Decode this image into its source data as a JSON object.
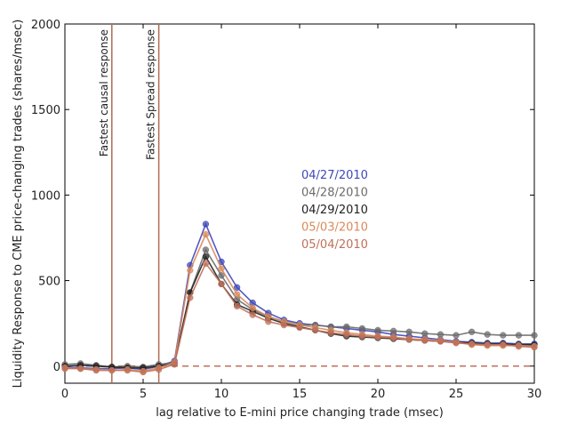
{
  "chart_data": {
    "type": "line",
    "title": "",
    "xlabel": "lag relative to E-mini price changing trade (msec)",
    "ylabel": "Liquidity Response to CME price-changing trades (shares/msec)",
    "xlim": [
      0,
      30
    ],
    "ylim": [
      -100,
      2000
    ],
    "xticks": [
      0,
      5,
      10,
      15,
      20,
      25,
      30
    ],
    "yticks": [
      0,
      500,
      1000,
      1500,
      2000
    ],
    "grid": false,
    "legend_position": "center",
    "reference_lines": [
      {
        "x": 3,
        "label": "Fastest causal response",
        "color": "#b06a50"
      },
      {
        "x": 6,
        "label": "Fastest Spread response",
        "color": "#b06a50"
      }
    ],
    "zero_line": {
      "y": 0,
      "style": "dashed",
      "color": "#c0705a"
    },
    "x": [
      0,
      1,
      2,
      3,
      4,
      5,
      6,
      7,
      8,
      9,
      10,
      11,
      12,
      13,
      14,
      15,
      16,
      17,
      18,
      19,
      20,
      21,
      22,
      23,
      24,
      25,
      26,
      27,
      28,
      29,
      30
    ],
    "series": [
      {
        "name": "04/27/2010",
        "color": "#3f48b8",
        "values": [
          -5,
          -10,
          -15,
          -15,
          -10,
          -20,
          0,
          30,
          590,
          830,
          610,
          460,
          370,
          310,
          270,
          250,
          240,
          230,
          220,
          210,
          200,
          185,
          175,
          165,
          155,
          145,
          140,
          135,
          135,
          130,
          130
        ]
      },
      {
        "name": "04/28/2010",
        "color": "#6b6b6b",
        "values": [
          10,
          15,
          5,
          -5,
          0,
          -5,
          10,
          20,
          430,
          680,
          530,
          390,
          330,
          290,
          260,
          240,
          240,
          230,
          230,
          220,
          210,
          205,
          200,
          190,
          185,
          180,
          200,
          185,
          180,
          180,
          180
        ]
      },
      {
        "name": "04/29/2010",
        "color": "#222222",
        "values": [
          0,
          5,
          0,
          -5,
          -10,
          -10,
          0,
          15,
          430,
          640,
          480,
          360,
          320,
          280,
          250,
          230,
          210,
          190,
          175,
          170,
          165,
          160,
          155,
          150,
          145,
          140,
          135,
          130,
          130,
          125,
          125
        ]
      },
      {
        "name": "05/03/2010",
        "color": "#d98a5a",
        "values": [
          -10,
          -15,
          -20,
          -25,
          -20,
          -30,
          -10,
          20,
          560,
          770,
          570,
          420,
          340,
          290,
          260,
          240,
          225,
          210,
          195,
          185,
          175,
          170,
          160,
          155,
          150,
          140,
          125,
          120,
          120,
          120,
          115
        ]
      },
      {
        "name": "05/04/2010",
        "color": "#c0705a",
        "values": [
          -15,
          -15,
          -25,
          -25,
          -25,
          -35,
          -20,
          10,
          400,
          600,
          480,
          350,
          300,
          260,
          240,
          225,
          210,
          195,
          185,
          175,
          170,
          165,
          155,
          150,
          145,
          135,
          130,
          125,
          125,
          115,
          110
        ]
      }
    ]
  }
}
